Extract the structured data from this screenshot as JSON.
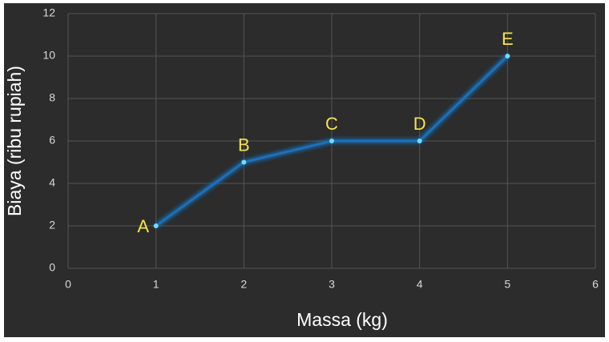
{
  "chart_data": {
    "type": "line",
    "x": [
      1,
      2,
      3,
      4,
      5
    ],
    "values": [
      2,
      5,
      6,
      6,
      10
    ],
    "point_labels": [
      "A",
      "B",
      "C",
      "D",
      "E"
    ],
    "color": "#1c6fb8",
    "marker_color": "#6fdcff",
    "xlabel": "Massa (kg)",
    "ylabel": "Biaya (ribu rupiah)",
    "xlim": [
      0,
      6
    ],
    "xticks": [
      0,
      1,
      2,
      3,
      4,
      5,
      6
    ],
    "ylim": [
      0,
      12
    ],
    "yticks": [
      0,
      2,
      4,
      6,
      8,
      10,
      12
    ],
    "grid": true
  }
}
